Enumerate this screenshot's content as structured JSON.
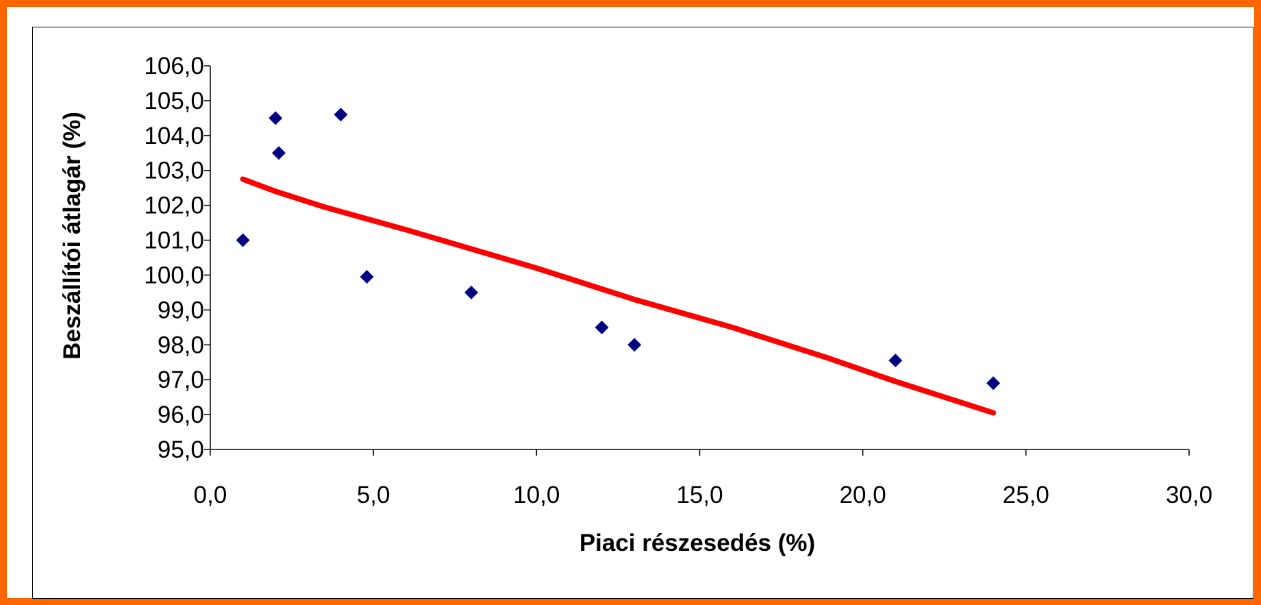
{
  "chart_data": {
    "type": "scatter",
    "title": "",
    "xlabel": "Piaci részesedés (%)",
    "ylabel": "Beszállítói átlagár (%)",
    "xlim": [
      0,
      30
    ],
    "ylim": [
      95,
      106
    ],
    "xticks": [
      "0,0",
      "5,0",
      "10,0",
      "15,0",
      "20,0",
      "25,0",
      "30,0"
    ],
    "yticks": [
      "95,0",
      "96,0",
      "97,0",
      "98,0",
      "99,0",
      "100,0",
      "101,0",
      "102,0",
      "103,0",
      "104,0",
      "105,0",
      "106,0"
    ],
    "grid": false,
    "legend": "none",
    "points": [
      {
        "x": 1.0,
        "y": 101.0
      },
      {
        "x": 2.0,
        "y": 104.5
      },
      {
        "x": 2.1,
        "y": 103.5
      },
      {
        "x": 4.0,
        "y": 104.6
      },
      {
        "x": 4.8,
        "y": 99.95
      },
      {
        "x": 8.0,
        "y": 99.5
      },
      {
        "x": 12.0,
        "y": 98.5
      },
      {
        "x": 13.0,
        "y": 98.0
      },
      {
        "x": 21.0,
        "y": 97.55
      },
      {
        "x": 24.0,
        "y": 96.9
      }
    ],
    "trendline": {
      "type": "logarithmic",
      "points": [
        {
          "x": 1.0,
          "y": 102.75
        },
        {
          "x": 2.0,
          "y": 102.4
        },
        {
          "x": 3.5,
          "y": 101.95
        },
        {
          "x": 6.0,
          "y": 101.3
        },
        {
          "x": 8.0,
          "y": 100.75
        },
        {
          "x": 10.0,
          "y": 100.2
        },
        {
          "x": 13.0,
          "y": 99.3
        },
        {
          "x": 16.0,
          "y": 98.5
        },
        {
          "x": 19.0,
          "y": 97.6
        },
        {
          "x": 21.0,
          "y": 96.95
        },
        {
          "x": 24.0,
          "y": 96.05
        }
      ]
    },
    "colors": {
      "marker": "#000080",
      "trendline": "#ff0000",
      "frame": "#ff6600"
    }
  }
}
